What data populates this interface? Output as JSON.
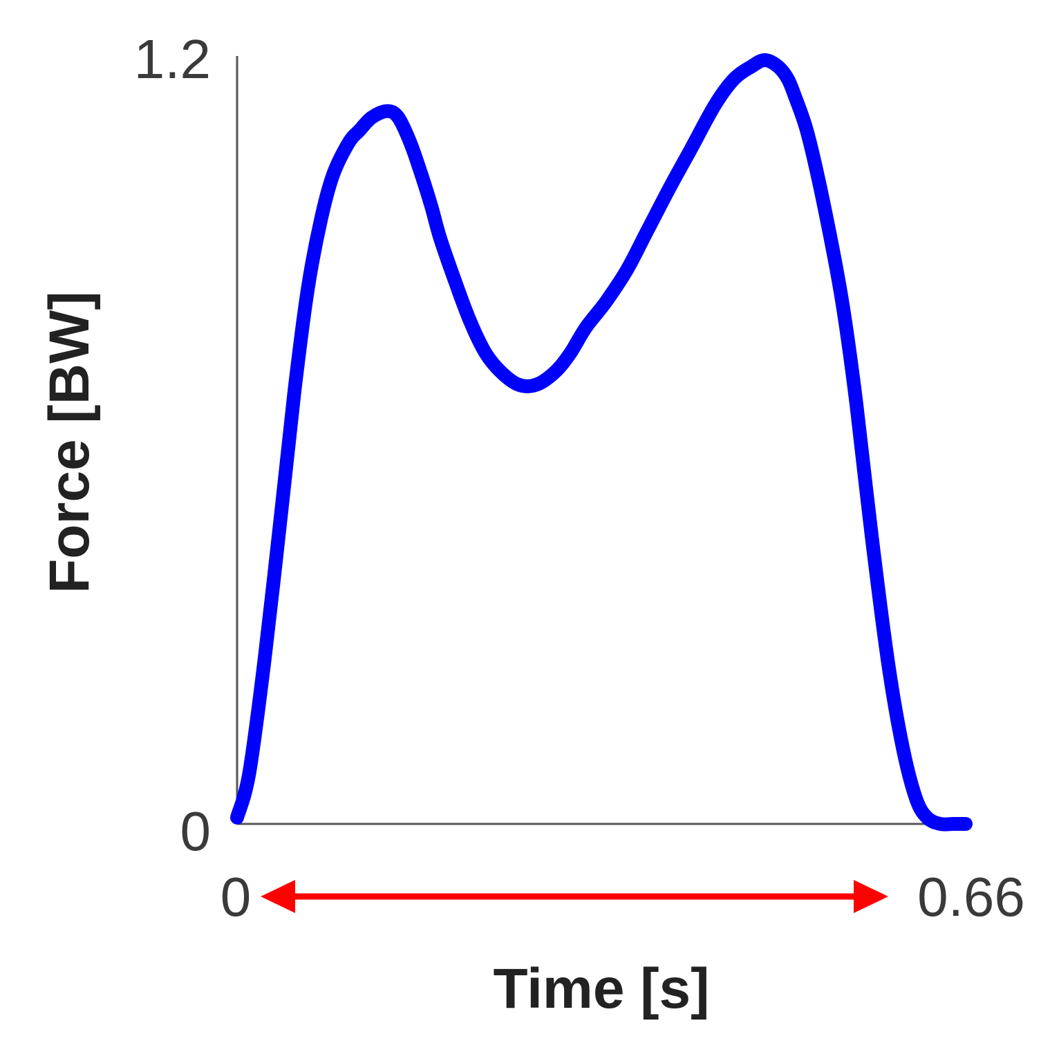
{
  "chart_data": {
    "type": "line",
    "title": "",
    "xlabel": "Time [s]",
    "ylabel": "Force [BW]",
    "xlim": [
      0,
      0.66
    ],
    "ylim": [
      0,
      1.2
    ],
    "x_ticks": [
      "0",
      "0.66"
    ],
    "y_ticks": [
      "0",
      "1.2"
    ],
    "grid": false,
    "series": [
      {
        "color": "#0000ff",
        "x": [
          0.0,
          0.011,
          0.025,
          0.04,
          0.052,
          0.064,
          0.076,
          0.087,
          0.101,
          0.111,
          0.122,
          0.136,
          0.146,
          0.157,
          0.167,
          0.176,
          0.184,
          0.198,
          0.211,
          0.225,
          0.239,
          0.255,
          0.271,
          0.288,
          0.302,
          0.316,
          0.334,
          0.353,
          0.371,
          0.392,
          0.411,
          0.433,
          0.45,
          0.466,
          0.478,
          0.49,
          0.499,
          0.506,
          0.516,
          0.527,
          0.541,
          0.55,
          0.561,
          0.575,
          0.59,
          0.603,
          0.615,
          0.625,
          0.637,
          0.649,
          0.66
        ],
        "y": [
          0.01,
          0.08,
          0.26,
          0.49,
          0.68,
          0.84,
          0.95,
          1.02,
          1.07,
          1.09,
          1.11,
          1.12,
          1.11,
          1.07,
          1.02,
          0.97,
          0.92,
          0.85,
          0.79,
          0.74,
          0.71,
          0.69,
          0.69,
          0.71,
          0.74,
          0.78,
          0.82,
          0.87,
          0.93,
          1.0,
          1.06,
          1.13,
          1.17,
          1.19,
          1.2,
          1.19,
          1.17,
          1.14,
          1.09,
          1.01,
          0.89,
          0.8,
          0.66,
          0.45,
          0.25,
          0.12,
          0.04,
          0.01,
          0.0,
          0.0,
          0.0
        ]
      }
    ],
    "annotations": [
      {
        "type": "double-arrow",
        "color": "#ff0000",
        "from_x": 0.0,
        "to_x": 0.66,
        "text_from": "0",
        "text_to": "0.66"
      }
    ]
  }
}
